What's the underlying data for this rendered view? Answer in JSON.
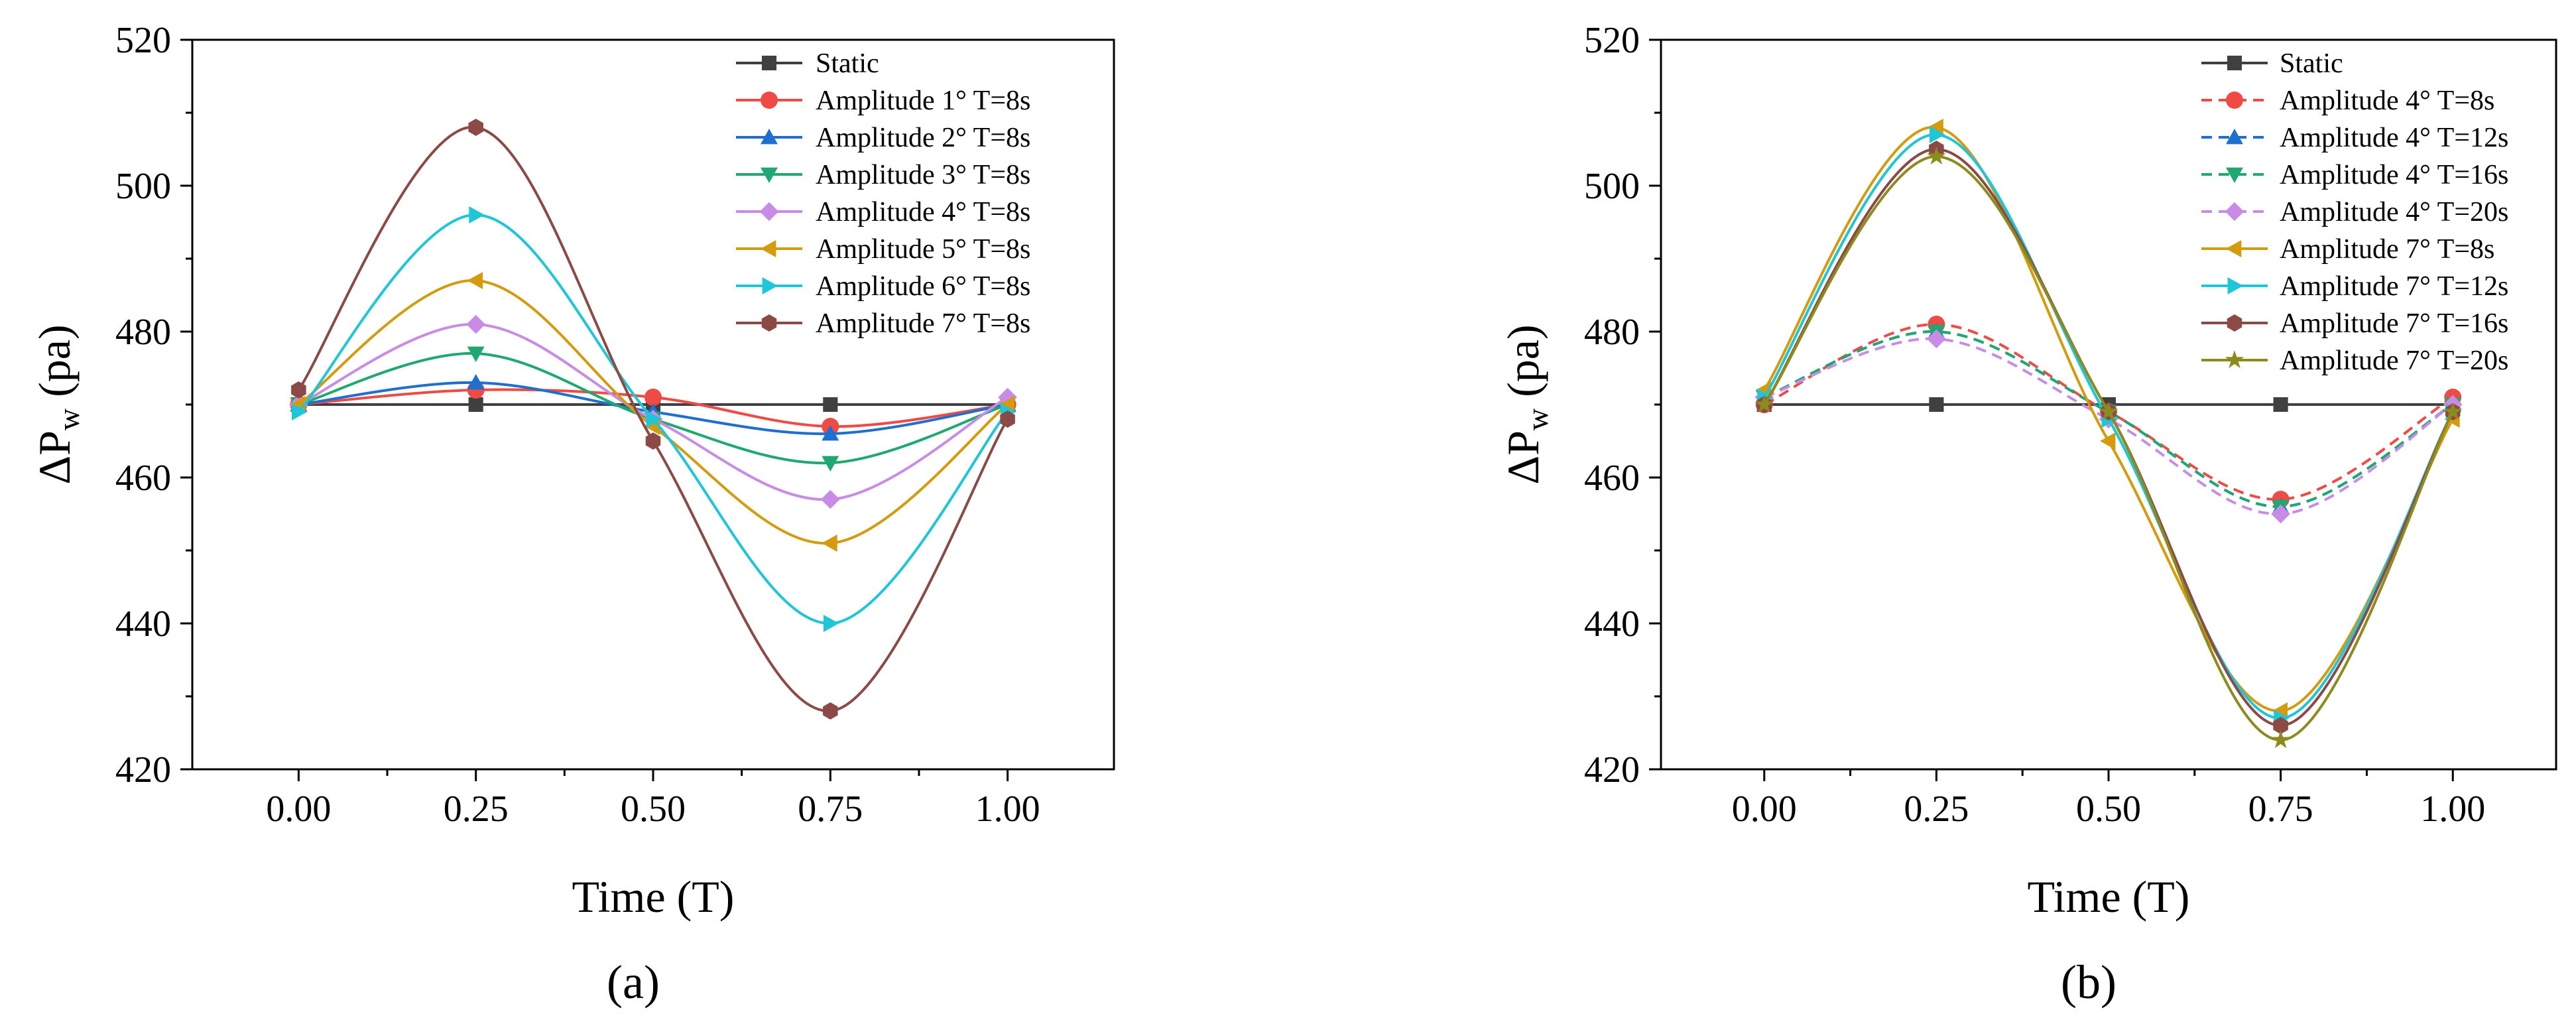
{
  "chart_data": [
    {
      "type": "line",
      "panel_label": "(a)",
      "xlabel": "Time (T)",
      "ylabel_main": "ΔP",
      "ylabel_sub": "w",
      "ylabel_unit": " (pa)",
      "xlim": [
        -0.15,
        1.15
      ],
      "ylim": [
        420,
        520
      ],
      "xticks": [
        0.0,
        0.25,
        0.5,
        0.75,
        1.0
      ],
      "xtick_labels": [
        "0.00",
        "0.25",
        "0.50",
        "0.75",
        "1.00"
      ],
      "yticks": [
        420,
        440,
        460,
        480,
        500,
        520
      ],
      "ytick_labels": [
        "420",
        "440",
        "460",
        "480",
        "500",
        "520"
      ],
      "legend_position": "top-right",
      "x": [
        0.0,
        0.25,
        0.5,
        0.75,
        1.0
      ],
      "series": [
        {
          "name": "Static",
          "values": [
            470,
            470,
            470,
            470,
            470
          ],
          "color": "#404040",
          "marker": "square",
          "dashed": false,
          "curve": "linear"
        },
        {
          "name": "Amplitude 1° T=8s",
          "values": [
            470,
            472,
            471,
            467,
            470
          ],
          "color": "#f04a44",
          "marker": "circle",
          "dashed": false,
          "curve": "smooth"
        },
        {
          "name": "Amplitude 2° T=8s",
          "values": [
            470,
            473,
            469,
            466,
            470
          ],
          "color": "#1f6fd1",
          "marker": "triangle-up",
          "dashed": false,
          "curve": "smooth"
        },
        {
          "name": "Amplitude 3° T=8s",
          "values": [
            470,
            477,
            468,
            462,
            470
          ],
          "color": "#1fa872",
          "marker": "triangle-down",
          "dashed": false,
          "curve": "smooth"
        },
        {
          "name": "Amplitude 4° T=8s",
          "values": [
            470,
            481,
            468,
            457,
            471
          ],
          "color": "#c98ce6",
          "marker": "diamond",
          "dashed": false,
          "curve": "smooth"
        },
        {
          "name": "Amplitude 5° T=8s",
          "values": [
            470,
            487,
            467,
            451,
            470
          ],
          "color": "#d49b0f",
          "marker": "triangle-left",
          "dashed": false,
          "curve": "smooth"
        },
        {
          "name": "Amplitude 6° T=8s",
          "values": [
            469,
            496,
            468,
            440,
            469
          ],
          "color": "#1ec6d8",
          "marker": "triangle-right",
          "dashed": false,
          "curve": "smooth"
        },
        {
          "name": "Amplitude 7° T=8s",
          "values": [
            472,
            508,
            465,
            428,
            468
          ],
          "color": "#8c4a46",
          "marker": "hexagon",
          "dashed": false,
          "curve": "smooth"
        }
      ]
    },
    {
      "type": "line",
      "panel_label": "(b)",
      "xlabel": "Time (T)",
      "ylabel_main": "ΔP",
      "ylabel_sub": "w",
      "ylabel_unit": " (pa)",
      "xlim": [
        -0.15,
        1.15
      ],
      "ylim": [
        420,
        520
      ],
      "xticks": [
        0.0,
        0.25,
        0.5,
        0.75,
        1.0
      ],
      "xtick_labels": [
        "0.00",
        "0.25",
        "0.50",
        "0.75",
        "1.00"
      ],
      "yticks": [
        420,
        440,
        460,
        480,
        500,
        520
      ],
      "ytick_labels": [
        "420",
        "440",
        "460",
        "480",
        "500",
        "520"
      ],
      "legend_position": "top-right",
      "x": [
        0.0,
        0.25,
        0.5,
        0.75,
        1.0
      ],
      "series": [
        {
          "name": "Static",
          "values": [
            470,
            470,
            470,
            470,
            470
          ],
          "color": "#404040",
          "marker": "square",
          "dashed": false,
          "curve": "linear"
        },
        {
          "name": "Amplitude 4° T=8s",
          "values": [
            470,
            481,
            469,
            457,
            471
          ],
          "color": "#f04a44",
          "marker": "circle",
          "dashed": true,
          "curve": "smooth"
        },
        {
          "name": "Amplitude 4° T=12s",
          "values": [
            471,
            480,
            469,
            456,
            470
          ],
          "color": "#1f6fd1",
          "marker": "triangle-up",
          "dashed": true,
          "curve": "smooth"
        },
        {
          "name": "Amplitude 4° T=16s",
          "values": [
            471,
            480,
            469,
            456,
            470
          ],
          "color": "#1fa872",
          "marker": "triangle-down",
          "dashed": true,
          "curve": "smooth"
        },
        {
          "name": "Amplitude 4° T=20s",
          "values": [
            471,
            479,
            468,
            455,
            470
          ],
          "color": "#c98ce6",
          "marker": "diamond",
          "dashed": true,
          "curve": "smooth"
        },
        {
          "name": "Amplitude 7° T=8s",
          "values": [
            472,
            508,
            465,
            428,
            468
          ],
          "color": "#d49b0f",
          "marker": "triangle-left",
          "dashed": false,
          "curve": "smooth"
        },
        {
          "name": "Amplitude 7° T=12s",
          "values": [
            471,
            507,
            468,
            427,
            469
          ],
          "color": "#1ec6d8",
          "marker": "triangle-right",
          "dashed": false,
          "curve": "smooth"
        },
        {
          "name": "Amplitude 7° T=16s",
          "values": [
            470,
            505,
            469,
            426,
            469
          ],
          "color": "#8c4a46",
          "marker": "hexagon",
          "dashed": false,
          "curve": "smooth"
        },
        {
          "name": "Amplitude 7° T=20s",
          "values": [
            470,
            504,
            469,
            424,
            469
          ],
          "color": "#8b8b1e",
          "marker": "star",
          "dashed": false,
          "curve": "smooth"
        }
      ]
    }
  ]
}
